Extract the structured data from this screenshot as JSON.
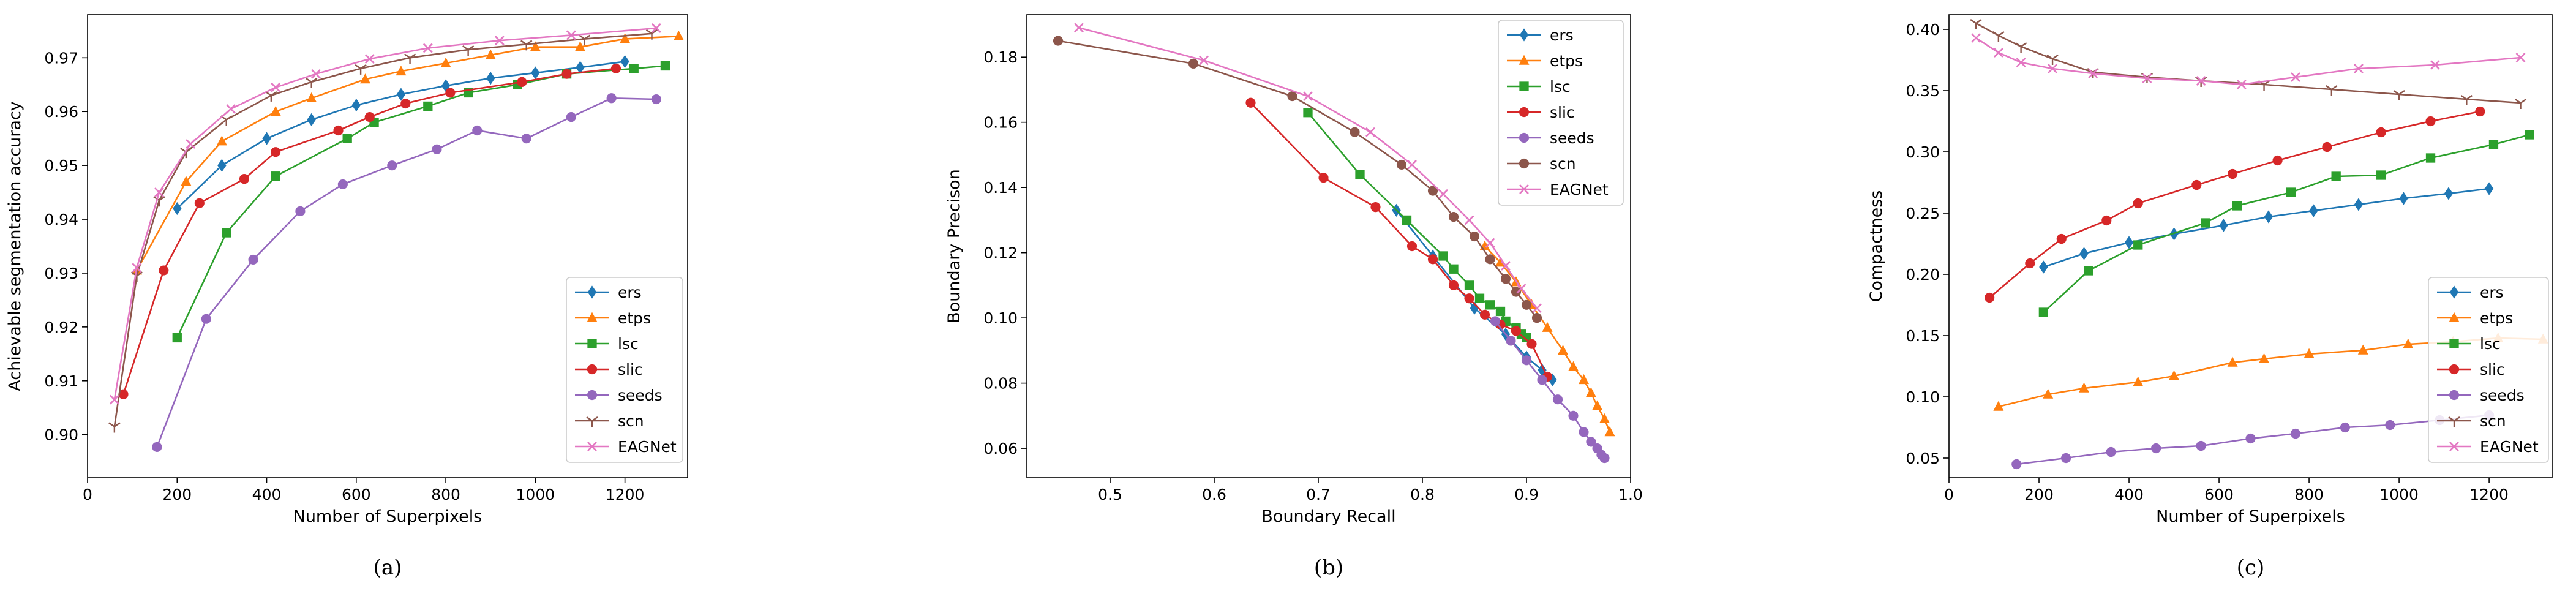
{
  "chart_data": [
    {
      "type": "line",
      "caption": "(a)",
      "title": "",
      "xlabel": "Number of Superpixels",
      "ylabel": "Achievable segmentation accuracy",
      "xlim": [
        0,
        1340
      ],
      "ylim": [
        0.892,
        0.978
      ],
      "xticks": [
        0,
        200,
        400,
        600,
        800,
        1000,
        1200
      ],
      "xtick_labels": [
        "0",
        "200",
        "400",
        "600",
        "800",
        "1000",
        "1200"
      ],
      "yticks": [
        0.9,
        0.91,
        0.92,
        0.93,
        0.94,
        0.95,
        0.96,
        0.97
      ],
      "ytick_labels": [
        "0.90",
        "0.91",
        "0.92",
        "0.93",
        "0.94",
        "0.95",
        "0.96",
        "0.97"
      ],
      "legend_position": "bottom-right",
      "series": [
        {
          "name": "ers",
          "color": "#1f77b4",
          "marker": "diamond",
          "x": [
            200,
            300,
            400,
            500,
            600,
            700,
            800,
            900,
            1000,
            1100,
            1200
          ],
          "y": [
            0.942,
            0.95,
            0.955,
            0.9585,
            0.9612,
            0.9632,
            0.9648,
            0.9662,
            0.9672,
            0.9682,
            0.9693
          ]
        },
        {
          "name": "etps",
          "color": "#ff7f0e",
          "marker": "triangle",
          "x": [
            110,
            220,
            300,
            420,
            500,
            620,
            700,
            800,
            900,
            1000,
            1100,
            1200,
            1320
          ],
          "y": [
            0.9305,
            0.947,
            0.9545,
            0.96,
            0.9625,
            0.966,
            0.9675,
            0.969,
            0.9705,
            0.972,
            0.972,
            0.9735,
            0.974
          ]
        },
        {
          "name": "lsc",
          "color": "#2ca02c",
          "marker": "square",
          "x": [
            200,
            310,
            420,
            580,
            640,
            760,
            850,
            960,
            1070,
            1220,
            1290
          ],
          "y": [
            0.918,
            0.9375,
            0.948,
            0.955,
            0.958,
            0.961,
            0.9635,
            0.965,
            0.967,
            0.968,
            0.9685
          ]
        },
        {
          "name": "slic",
          "color": "#d62728",
          "marker": "circle",
          "x": [
            80,
            170,
            250,
            350,
            420,
            560,
            630,
            710,
            810,
            970,
            1070,
            1180
          ],
          "y": [
            0.9075,
            0.9305,
            0.943,
            0.9475,
            0.9525,
            0.9565,
            0.959,
            0.9615,
            0.9635,
            0.9655,
            0.967,
            0.968
          ]
        },
        {
          "name": "seeds",
          "color": "#9467bd",
          "marker": "circle",
          "x": [
            155,
            265,
            370,
            475,
            570,
            680,
            780,
            870,
            980,
            1080,
            1170,
            1270
          ],
          "y": [
            0.8977,
            0.9215,
            0.9325,
            0.9415,
            0.9465,
            0.95,
            0.953,
            0.9565,
            0.955,
            0.959,
            0.9625,
            0.9623
          ]
        },
        {
          "name": "scn",
          "color": "#8c564b",
          "marker": "tri_down",
          "x": [
            60,
            110,
            160,
            220,
            310,
            410,
            500,
            610,
            720,
            850,
            980,
            1110,
            1260
          ],
          "y": [
            0.9015,
            0.9295,
            0.9435,
            0.9525,
            0.9585,
            0.963,
            0.9655,
            0.968,
            0.97,
            0.9715,
            0.9725,
            0.9735,
            0.9745
          ]
        },
        {
          "name": "EAGNet",
          "color": "#e377c2",
          "marker": "x",
          "x": [
            60,
            110,
            160,
            230,
            320,
            420,
            510,
            630,
            760,
            920,
            1080,
            1270
          ],
          "y": [
            0.9065,
            0.931,
            0.945,
            0.954,
            0.9605,
            0.9645,
            0.967,
            0.9698,
            0.9718,
            0.9732,
            0.9742,
            0.9755
          ]
        }
      ]
    },
    {
      "type": "line",
      "caption": "(b)",
      "title": "",
      "xlabel": "Boundary Recall",
      "ylabel": "Boundary Precison",
      "xlim": [
        0.42,
        1.0
      ],
      "ylim": [
        0.051,
        0.193
      ],
      "xticks": [
        0.5,
        0.6,
        0.7,
        0.8,
        0.9,
        1.0
      ],
      "xtick_labels": [
        "0.5",
        "0.6",
        "0.7",
        "0.8",
        "0.9",
        "1.0"
      ],
      "yticks": [
        0.06,
        0.08,
        0.1,
        0.12,
        0.14,
        0.16,
        0.18
      ],
      "ytick_labels": [
        "0.06",
        "0.08",
        "0.10",
        "0.12",
        "0.14",
        "0.16",
        "0.18"
      ],
      "legend_position": "top-right",
      "series": [
        {
          "name": "ers",
          "color": "#1f77b4",
          "marker": "diamond",
          "x": [
            0.775,
            0.81,
            0.85,
            0.88,
            0.9,
            0.915,
            0.925
          ],
          "y": [
            0.133,
            0.119,
            0.103,
            0.095,
            0.088,
            0.084,
            0.081
          ]
        },
        {
          "name": "etps",
          "color": "#ff7f0e",
          "marker": "triangle",
          "x": [
            0.86,
            0.875,
            0.89,
            0.905,
            0.92,
            0.935,
            0.945,
            0.955,
            0.962,
            0.968,
            0.975,
            0.98
          ],
          "y": [
            0.122,
            0.117,
            0.111,
            0.104,
            0.097,
            0.09,
            0.085,
            0.081,
            0.077,
            0.073,
            0.069,
            0.065
          ]
        },
        {
          "name": "lsc",
          "color": "#2ca02c",
          "marker": "square",
          "x": [
            0.69,
            0.74,
            0.785,
            0.82,
            0.83,
            0.845,
            0.855,
            0.865,
            0.875,
            0.88,
            0.89,
            0.895,
            0.9
          ],
          "y": [
            0.163,
            0.144,
            0.13,
            0.119,
            0.115,
            0.11,
            0.106,
            0.104,
            0.102,
            0.099,
            0.097,
            0.095,
            0.094
          ]
        },
        {
          "name": "slic",
          "color": "#d62728",
          "marker": "circle",
          "x": [
            0.635,
            0.705,
            0.755,
            0.79,
            0.81,
            0.83,
            0.845,
            0.86,
            0.875,
            0.89,
            0.905,
            0.92
          ],
          "y": [
            0.166,
            0.143,
            0.134,
            0.122,
            0.118,
            0.11,
            0.106,
            0.101,
            0.098,
            0.096,
            0.092,
            0.082
          ]
        },
        {
          "name": "seeds",
          "color": "#9467bd",
          "marker": "circle",
          "x": [
            0.87,
            0.885,
            0.9,
            0.915,
            0.93,
            0.945,
            0.955,
            0.962,
            0.968,
            0.972,
            0.975
          ],
          "y": [
            0.099,
            0.093,
            0.087,
            0.081,
            0.075,
            0.07,
            0.065,
            0.062,
            0.06,
            0.058,
            0.057
          ]
        },
        {
          "name": "scn",
          "color": "#8c564b",
          "marker": "circle",
          "x": [
            0.45,
            0.58,
            0.675,
            0.735,
            0.78,
            0.81,
            0.83,
            0.85,
            0.865,
            0.88,
            0.89,
            0.9,
            0.91
          ],
          "y": [
            0.185,
            0.178,
            0.168,
            0.157,
            0.147,
            0.139,
            0.131,
            0.125,
            0.118,
            0.112,
            0.108,
            0.104,
            0.1
          ]
        },
        {
          "name": "EAGNet",
          "color": "#e377c2",
          "marker": "x",
          "x": [
            0.47,
            0.59,
            0.69,
            0.75,
            0.79,
            0.82,
            0.845,
            0.865,
            0.88,
            0.895,
            0.91
          ],
          "y": [
            0.189,
            0.179,
            0.168,
            0.157,
            0.147,
            0.138,
            0.13,
            0.123,
            0.116,
            0.109,
            0.103
          ]
        }
      ]
    },
    {
      "type": "line",
      "caption": "(c)",
      "title": "",
      "xlabel": "Number of Superpixels",
      "ylabel": "Compactness",
      "xlim": [
        0,
        1340
      ],
      "ylim": [
        0.034,
        0.412
      ],
      "xticks": [
        0,
        200,
        400,
        600,
        800,
        1000,
        1200
      ],
      "xtick_labels": [
        "0",
        "200",
        "400",
        "600",
        "800",
        "1000",
        "1200"
      ],
      "yticks": [
        0.05,
        0.1,
        0.15,
        0.2,
        0.25,
        0.3,
        0.35,
        0.4
      ],
      "ytick_labels": [
        "0.05",
        "0.10",
        "0.15",
        "0.20",
        "0.25",
        "0.30",
        "0.35",
        "0.40"
      ],
      "legend_position": "bottom-right",
      "series": [
        {
          "name": "ers",
          "color": "#1f77b4",
          "marker": "diamond",
          "x": [
            210,
            300,
            400,
            500,
            610,
            710,
            810,
            910,
            1010,
            1110,
            1200
          ],
          "y": [
            0.206,
            0.217,
            0.226,
            0.233,
            0.24,
            0.247,
            0.252,
            0.257,
            0.262,
            0.266,
            0.27
          ]
        },
        {
          "name": "etps",
          "color": "#ff7f0e",
          "marker": "triangle",
          "x": [
            110,
            220,
            300,
            420,
            500,
            630,
            700,
            800,
            920,
            1020,
            1120,
            1220,
            1320
          ],
          "y": [
            0.092,
            0.102,
            0.107,
            0.112,
            0.117,
            0.128,
            0.131,
            0.135,
            0.138,
            0.143,
            0.145,
            0.148,
            0.147
          ]
        },
        {
          "name": "lsc",
          "color": "#2ca02c",
          "marker": "square",
          "x": [
            210,
            310,
            420,
            570,
            640,
            760,
            860,
            960,
            1070,
            1210,
            1290
          ],
          "y": [
            0.169,
            0.203,
            0.224,
            0.242,
            0.256,
            0.267,
            0.28,
            0.281,
            0.295,
            0.306,
            0.314
          ]
        },
        {
          "name": "slic",
          "color": "#d62728",
          "marker": "circle",
          "x": [
            90,
            180,
            250,
            350,
            420,
            550,
            630,
            730,
            840,
            960,
            1070,
            1180
          ],
          "y": [
            0.181,
            0.209,
            0.229,
            0.244,
            0.258,
            0.273,
            0.282,
            0.293,
            0.304,
            0.316,
            0.325,
            0.333
          ]
        },
        {
          "name": "seeds",
          "color": "#9467bd",
          "marker": "circle",
          "x": [
            150,
            260,
            360,
            460,
            560,
            670,
            770,
            880,
            980,
            1090,
            1200
          ],
          "y": [
            0.045,
            0.05,
            0.055,
            0.058,
            0.06,
            0.066,
            0.07,
            0.075,
            0.077,
            0.081,
            0.085
          ]
        },
        {
          "name": "scn",
          "color": "#8c564b",
          "marker": "tri_down",
          "x": [
            60,
            110,
            160,
            230,
            320,
            440,
            560,
            700,
            850,
            1000,
            1150,
            1270
          ],
          "y": [
            0.405,
            0.395,
            0.386,
            0.376,
            0.365,
            0.361,
            0.358,
            0.355,
            0.351,
            0.347,
            0.343,
            0.34
          ]
        },
        {
          "name": "EAGNet",
          "color": "#e377c2",
          "marker": "x",
          "x": [
            60,
            110,
            160,
            230,
            320,
            440,
            560,
            650,
            770,
            910,
            1080,
            1270
          ],
          "y": [
            0.393,
            0.381,
            0.373,
            0.368,
            0.364,
            0.36,
            0.358,
            0.355,
            0.361,
            0.368,
            0.371,
            0.377
          ]
        }
      ]
    }
  ]
}
